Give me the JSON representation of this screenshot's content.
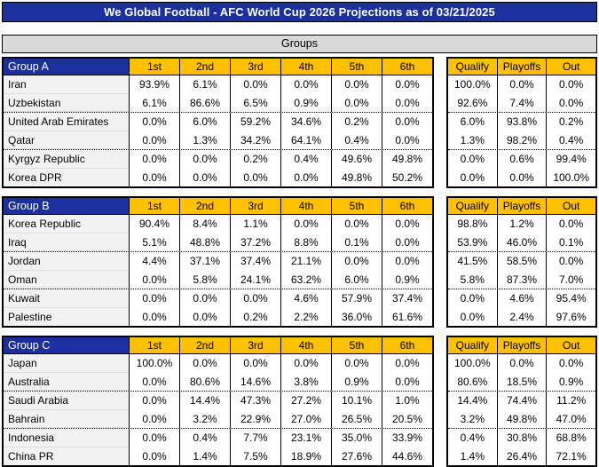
{
  "colors": {
    "header_blue": "#1b2f9e",
    "gold": "#ffc000",
    "section_gray": "#d9d9d9",
    "team_cell_gray": "#f2f2f2",
    "title_text": "#ffffff",
    "body_text": "#000000"
  },
  "chart_data": {
    "type": "table",
    "title": "We Global Football - AFC World Cup 2026 Projections as of 03/21/2025",
    "section_title": "Groups",
    "position_columns": [
      "1st",
      "2nd",
      "3rd",
      "4th",
      "5th",
      "6th"
    ],
    "outcome_columns": [
      "Qualify",
      "Playoffs",
      "Out"
    ],
    "separator_after_rows": [
      2,
      4
    ],
    "groups": [
      {
        "name": "Group A",
        "teams": [
          {
            "name": "Iran",
            "positions": [
              "93.9%",
              "6.1%",
              "0.0%",
              "0.0%",
              "0.0%",
              "0.0%"
            ],
            "outcomes": [
              "100.0%",
              "0.0%",
              "0.0%"
            ]
          },
          {
            "name": "Uzbekistan",
            "positions": [
              "6.1%",
              "86.6%",
              "6.5%",
              "0.9%",
              "0.0%",
              "0.0%"
            ],
            "outcomes": [
              "92.6%",
              "7.4%",
              "0.0%"
            ]
          },
          {
            "name": "United Arab Emirates",
            "positions": [
              "0.0%",
              "6.0%",
              "59.2%",
              "34.6%",
              "0.2%",
              "0.0%"
            ],
            "outcomes": [
              "6.0%",
              "93.8%",
              "0.2%"
            ]
          },
          {
            "name": "Qatar",
            "positions": [
              "0.0%",
              "1.3%",
              "34.2%",
              "64.1%",
              "0.4%",
              "0.0%"
            ],
            "outcomes": [
              "1.3%",
              "98.2%",
              "0.4%"
            ]
          },
          {
            "name": "Kyrgyz Republic",
            "positions": [
              "0.0%",
              "0.0%",
              "0.2%",
              "0.4%",
              "49.6%",
              "49.8%"
            ],
            "outcomes": [
              "0.0%",
              "0.6%",
              "99.4%"
            ]
          },
          {
            "name": "Korea DPR",
            "positions": [
              "0.0%",
              "0.0%",
              "0.0%",
              "0.0%",
              "49.8%",
              "50.2%"
            ],
            "outcomes": [
              "0.0%",
              "0.0%",
              "100.0%"
            ]
          }
        ]
      },
      {
        "name": "Group B",
        "teams": [
          {
            "name": "Korea Republic",
            "positions": [
              "90.4%",
              "8.4%",
              "1.1%",
              "0.0%",
              "0.0%",
              "0.0%"
            ],
            "outcomes": [
              "98.8%",
              "1.2%",
              "0.0%"
            ]
          },
          {
            "name": "Iraq",
            "positions": [
              "5.1%",
              "48.8%",
              "37.2%",
              "8.8%",
              "0.1%",
              "0.0%"
            ],
            "outcomes": [
              "53.9%",
              "46.0%",
              "0.1%"
            ]
          },
          {
            "name": "Jordan",
            "positions": [
              "4.4%",
              "37.1%",
              "37.4%",
              "21.1%",
              "0.0%",
              "0.0%"
            ],
            "outcomes": [
              "41.5%",
              "58.5%",
              "0.0%"
            ]
          },
          {
            "name": "Oman",
            "positions": [
              "0.0%",
              "5.8%",
              "24.1%",
              "63.2%",
              "6.0%",
              "0.9%"
            ],
            "outcomes": [
              "5.8%",
              "87.3%",
              "7.0%"
            ]
          },
          {
            "name": "Kuwait",
            "positions": [
              "0.0%",
              "0.0%",
              "0.0%",
              "4.6%",
              "57.9%",
              "37.4%"
            ],
            "outcomes": [
              "0.0%",
              "4.6%",
              "95.4%"
            ]
          },
          {
            "name": "Palestine",
            "positions": [
              "0.0%",
              "0.0%",
              "0.2%",
              "2.2%",
              "36.0%",
              "61.6%"
            ],
            "outcomes": [
              "0.0%",
              "2.4%",
              "97.6%"
            ]
          }
        ]
      },
      {
        "name": "Group C",
        "teams": [
          {
            "name": "Japan",
            "positions": [
              "100.0%",
              "0.0%",
              "0.0%",
              "0.0%",
              "0.0%",
              "0.0%"
            ],
            "outcomes": [
              "100.0%",
              "0.0%",
              "0.0%"
            ]
          },
          {
            "name": "Australia",
            "positions": [
              "0.0%",
              "80.6%",
              "14.6%",
              "3.8%",
              "0.9%",
              "0.0%"
            ],
            "outcomes": [
              "80.6%",
              "18.5%",
              "0.9%"
            ]
          },
          {
            "name": "Saudi Arabia",
            "positions": [
              "0.0%",
              "14.4%",
              "47.3%",
              "27.2%",
              "10.1%",
              "1.0%"
            ],
            "outcomes": [
              "14.4%",
              "74.4%",
              "11.2%"
            ]
          },
          {
            "name": "Bahrain",
            "positions": [
              "0.0%",
              "3.2%",
              "22.9%",
              "27.0%",
              "26.5%",
              "20.5%"
            ],
            "outcomes": [
              "3.2%",
              "49.8%",
              "47.0%"
            ]
          },
          {
            "name": "Indonesia",
            "positions": [
              "0.0%",
              "0.4%",
              "7.7%",
              "23.1%",
              "35.0%",
              "33.9%"
            ],
            "outcomes": [
              "0.4%",
              "30.8%",
              "68.8%"
            ]
          },
          {
            "name": "China PR",
            "positions": [
              "0.0%",
              "1.4%",
              "7.5%",
              "18.9%",
              "27.6%",
              "44.6%"
            ],
            "outcomes": [
              "1.4%",
              "26.4%",
              "72.1%"
            ]
          }
        ]
      }
    ]
  }
}
